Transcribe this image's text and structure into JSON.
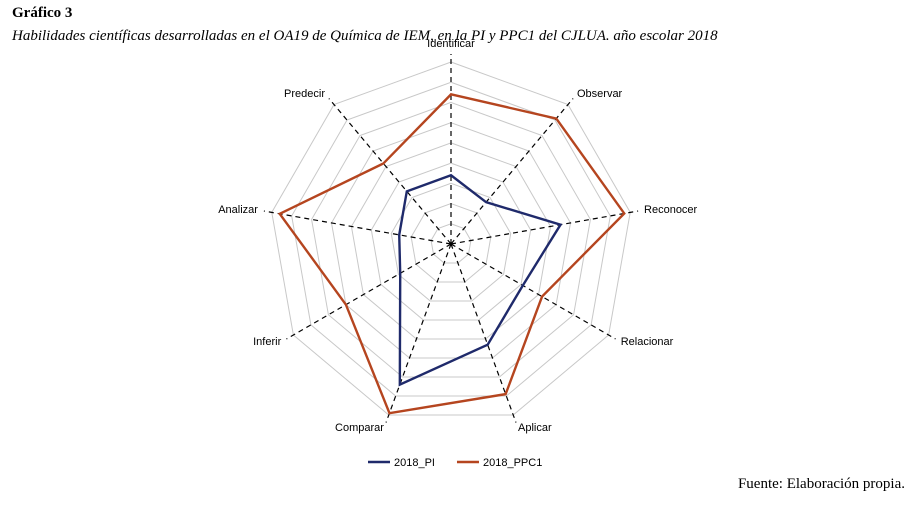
{
  "chart_data": {
    "type": "radar",
    "title": "Gráfico 3",
    "subtitle": "Habilidades científicas desarrolladas en el OA19 de Química de IEM, en la PI y PPC1 del CJLUA. año escolar 2018",
    "source": "Fuente: Elaboración propia.",
    "categories": [
      "Identificar",
      "Observar",
      "Reconocer",
      "Relacionar",
      "Aplicar",
      "Comparar",
      "Inferir",
      "Analizar",
      "Predecir"
    ],
    "series": [
      {
        "name": "2018_PI",
        "color": "#1f2a6b",
        "values": [
          3.4,
          2.7,
          5.5,
          4.1,
          5.3,
          7.4,
          2.9,
          2.6,
          3.4
        ]
      },
      {
        "name": "2018_PPC1",
        "color": "#b5451f",
        "values": [
          7.4,
          8.1,
          8.7,
          5.2,
          7.9,
          8.9,
          6.0,
          8.6,
          5.2
        ]
      }
    ],
    "ylim": [
      0,
      9
    ],
    "yticks": [
      1,
      2,
      3,
      4,
      5,
      6,
      7,
      8,
      9
    ],
    "grid": true,
    "legend": "bottom"
  }
}
